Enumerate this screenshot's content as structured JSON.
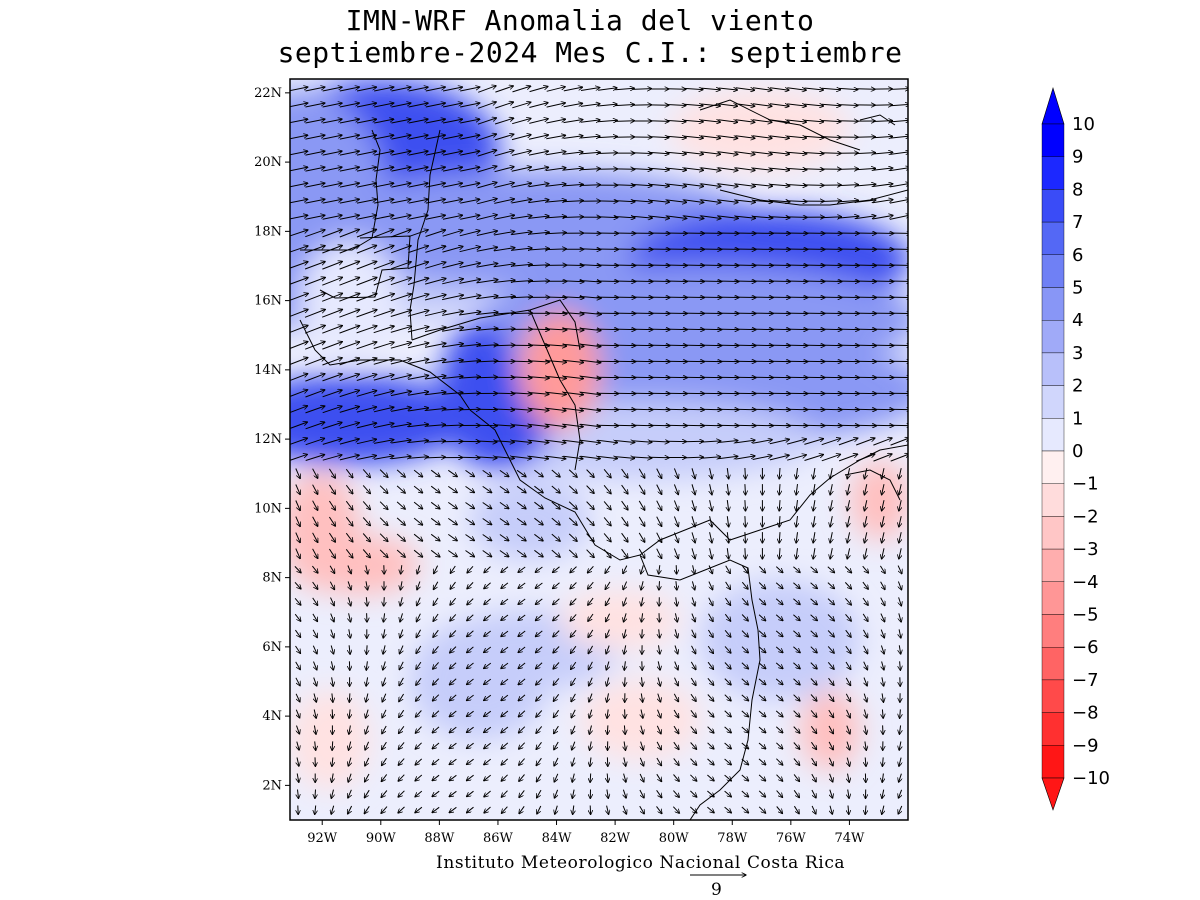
{
  "title_line1": "IMN-WRF Anomalia del viento",
  "title_line2": "septiembre-2024 Mes C.I.: septiembre",
  "credit": "Instituto Meteorologico Nacional Costa Rica",
  "reference_vector": {
    "value": "9"
  },
  "map": {
    "lat_ticks": [
      "22N",
      "20N",
      "18N",
      "16N",
      "14N",
      "12N",
      "10N",
      "8N",
      "6N",
      "4N",
      "2N"
    ],
    "lon_ticks": [
      "92W",
      "90W",
      "88W",
      "86W",
      "84W",
      "82W",
      "80W",
      "78W",
      "76W",
      "74W"
    ],
    "lat_range": [
      1,
      22.4
    ],
    "lon_range": [
      -93.1,
      -72.0
    ]
  },
  "colorbar": {
    "labels": [
      "10",
      "9",
      "8",
      "7",
      "6",
      "5",
      "4",
      "3",
      "2",
      "1",
      "0",
      "−1",
      "−2",
      "−3",
      "−4",
      "−5",
      "−6",
      "−7",
      "−8",
      "−9",
      "−10"
    ],
    "colors": [
      "#0000ff",
      "#1c28ff",
      "#3a4cf7",
      "#5468f5",
      "#6f80f5",
      "#8896f6",
      "#a0aaf8",
      "#b8c0fa",
      "#d0d6fc",
      "#e6e9fe",
      "#fff0f0",
      "#ffdcdc",
      "#ffc6c6",
      "#ffaeae",
      "#ff9696",
      "#ff7e7e",
      "#ff6464",
      "#ff4a4a",
      "#ff3030",
      "#ff1616"
    ]
  },
  "palette": {
    "strong_blue": "#3c50f0",
    "mid_blue": "#8a98f4",
    "light_blue": "#c6cdfa",
    "pale_blue": "#e6e9fe",
    "pale_red": "#ffe2e2",
    "light_red": "#ffc0c0",
    "mid_red": "#ff9a9a"
  }
}
